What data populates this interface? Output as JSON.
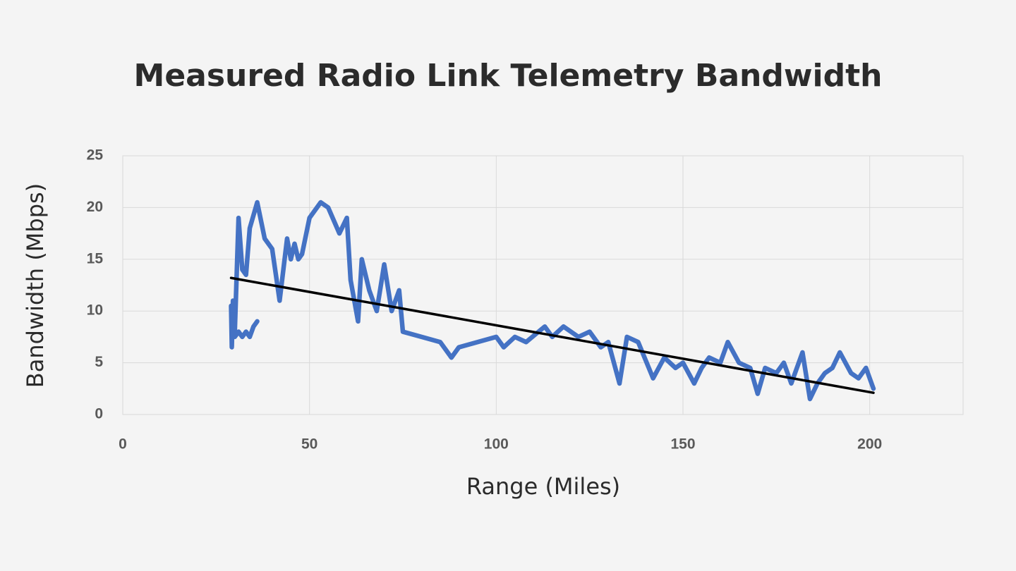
{
  "chart_data": {
    "type": "line",
    "title": "Measured Radio Link Telemetry Bandwidth",
    "xlabel": "Range (Miles)",
    "ylabel": "Bandwidth (Mbps)",
    "xlim": [
      0,
      225
    ],
    "xticks": [
      0,
      50,
      100,
      150,
      200
    ],
    "ylim": [
      0,
      25
    ],
    "yticks": [
      0,
      5,
      10,
      15,
      20,
      25
    ],
    "grid": true,
    "series": [
      {
        "color": "#4472c4",
        "x": [
          29,
          29.2,
          29.5,
          30,
          31,
          32,
          33,
          34,
          35,
          36
        ],
        "values": [
          10.5,
          6.5,
          11,
          7.5,
          8,
          7.5,
          8,
          7.5,
          8.5,
          9
        ]
      },
      {
        "color": "#4472c4",
        "x": [
          30,
          31,
          32,
          33,
          34,
          36,
          38,
          40,
          42,
          44,
          45,
          46,
          47,
          48,
          50,
          53,
          55,
          58,
          60,
          61,
          62,
          63,
          64,
          66,
          68,
          70,
          72,
          74,
          75,
          80,
          85,
          88,
          90,
          95,
          100,
          102,
          105,
          108,
          113,
          115,
          118,
          122,
          125,
          128,
          130,
          133,
          135,
          138,
          142,
          145,
          148,
          150,
          153,
          155,
          157,
          160,
          162,
          165,
          168,
          170,
          172,
          175,
          177,
          179,
          182,
          184,
          186,
          188,
          190,
          192,
          195,
          197,
          199,
          201
        ],
        "values": [
          8,
          19,
          14,
          13.5,
          18,
          20.5,
          17,
          16,
          11,
          17,
          15,
          16.5,
          15,
          15.5,
          19,
          20.5,
          20,
          17.5,
          19,
          13,
          11,
          9,
          15,
          12,
          10,
          14.5,
          10,
          12,
          8,
          7.5,
          7,
          5.5,
          6.5,
          7,
          7.5,
          6.5,
          7.5,
          7,
          8.5,
          7.5,
          8.5,
          7.5,
          8,
          6.5,
          7,
          3,
          7.5,
          7,
          3.5,
          5.5,
          4.5,
          5,
          3,
          4.5,
          5.5,
          5,
          7,
          5,
          4.5,
          2,
          4.5,
          4,
          5,
          3,
          6,
          1.5,
          3,
          4,
          4.5,
          6,
          4,
          3.5,
          4.5,
          2.5
        ]
      },
      {
        "color": "#000000",
        "x": [
          29,
          201
        ],
        "values": [
          13.2,
          2.1
        ]
      }
    ]
  }
}
